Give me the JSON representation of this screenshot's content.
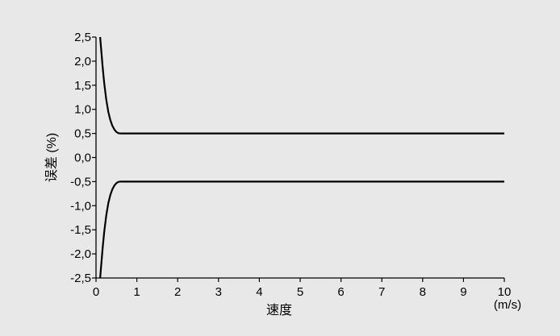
{
  "chart_data": {
    "type": "line",
    "title": "",
    "xlabel": "速度",
    "x_unit": "(m/s)",
    "ylabel": "误差 (%)",
    "xlim": [
      0,
      10
    ],
    "ylim": [
      -2.5,
      2.5
    ],
    "x_ticks": [
      "0",
      "1",
      "2",
      "3",
      "4",
      "5",
      "6",
      "7",
      "8",
      "9",
      "10"
    ],
    "y_ticks": [
      "2,5",
      "2,0",
      "1,5",
      "1,0",
      "0,5",
      "0,0",
      "-0,5",
      "-1,0",
      "-1,5",
      "-2,0",
      "-2,5"
    ],
    "grid": false,
    "series": [
      {
        "x": [
          0.1,
          0.13,
          0.16,
          0.2,
          0.25,
          0.3,
          0.35,
          0.4,
          0.45,
          0.5,
          0.55,
          0.6,
          1,
          2,
          3,
          4,
          5,
          6,
          7,
          8,
          9,
          10
        ],
        "y": [
          2.5,
          2.2,
          1.9,
          1.55,
          1.2,
          0.95,
          0.78,
          0.66,
          0.58,
          0.53,
          0.505,
          0.5,
          0.5,
          0.5,
          0.5,
          0.5,
          0.5,
          0.5,
          0.5,
          0.5,
          0.5,
          0.5
        ]
      },
      {
        "x": [
          0.1,
          0.13,
          0.16,
          0.2,
          0.25,
          0.3,
          0.35,
          0.4,
          0.45,
          0.5,
          0.55,
          0.6,
          1,
          2,
          3,
          4,
          5,
          6,
          7,
          8,
          9,
          10
        ],
        "y": [
          -2.5,
          -2.2,
          -1.9,
          -1.55,
          -1.2,
          -0.95,
          -0.78,
          -0.66,
          -0.58,
          -0.53,
          -0.505,
          -0.5,
          -0.5,
          -0.5,
          -0.5,
          -0.5,
          -0.5,
          -0.5,
          -0.5,
          -0.5,
          -0.5,
          -0.5
        ]
      }
    ]
  }
}
